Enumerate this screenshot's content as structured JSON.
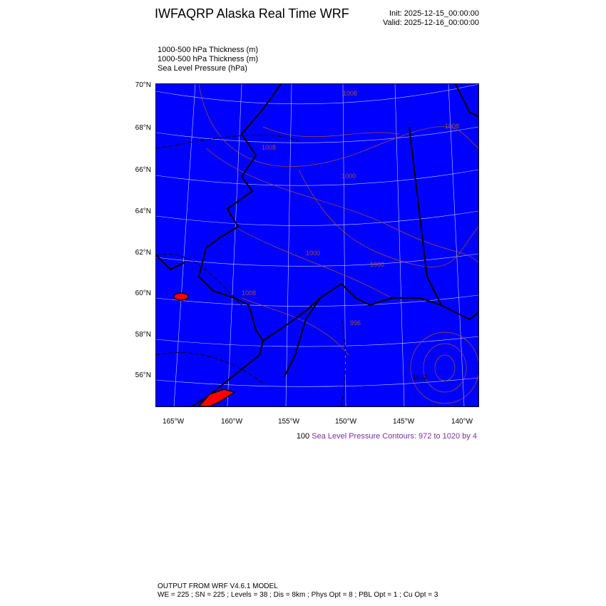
{
  "header": {
    "title": "IWFAQRP Alaska Real Time WRF",
    "init": "Init: 2025-12-15_00:00:00",
    "valid": "Valid: 2025-12-16_00:00:00"
  },
  "fields": [
    "1000-500 hPa Thickness   (m)",
    "1000-500 hPa Thickness   (m)",
    "Sea Level Pressure   (hPa)"
  ],
  "map": {
    "ocean_fill": "#0000ff",
    "land_fill": "#0000ff",
    "highlight_fill": "#ff0000",
    "contour_color": "#a0522d",
    "lat_labels": [
      "70°N",
      "68°N",
      "66°N",
      "64°N",
      "62°N",
      "60°N",
      "58°N",
      "56°N"
    ],
    "lon_labels": [
      "165°W",
      "160°W",
      "155°W",
      "150°W",
      "145°W",
      "140°W"
    ],
    "contour_labels": [
      "1008",
      "1008",
      "1008",
      "1000",
      "1000",
      "1008",
      "1000",
      "996",
      "1012"
    ]
  },
  "contour_info": {
    "prefix": "100",
    "text": "Sea Level Pressure Contours: 972 to 1020 by 4"
  },
  "footer": {
    "line1": "OUTPUT FROM WRF V4.6.1 MODEL",
    "line2": "WE = 225 ; SN = 225 ; Levels = 38 ; Dis = 8km ; Phys Opt = 8 ; PBL Opt = 1 ; Cu Opt = 3"
  }
}
